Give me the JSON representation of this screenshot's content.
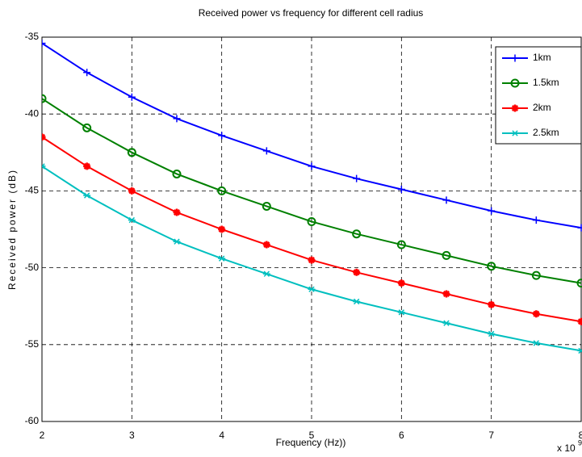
{
  "chart_data": {
    "type": "line",
    "title": "Received power vs frequency for different cell radius",
    "x_label": "Frequency (Hz))",
    "y_label": "Received power (dB)",
    "x_multiplier": {
      "base": "x 10",
      "exponent": "9"
    },
    "x": [
      2,
      2.5,
      3,
      3.5,
      4,
      4.5,
      5,
      5.5,
      6,
      6.5,
      7,
      7.5,
      8
    ],
    "series": [
      {
        "name": "1km",
        "color": "#0000ff",
        "marker": "plus",
        "values": [
          -35.4,
          -37.3,
          -38.9,
          -40.3,
          -41.4,
          -42.4,
          -43.4,
          -44.2,
          -44.9,
          -45.6,
          -46.3,
          -46.9,
          -47.4
        ]
      },
      {
        "name": "1.5km",
        "color": "#008000",
        "marker": "circle",
        "values": [
          -39.0,
          -40.9,
          -42.5,
          -43.9,
          -45.0,
          -46.0,
          -47.0,
          -47.8,
          -48.5,
          -49.2,
          -49.9,
          -50.5,
          -51.0
        ]
      },
      {
        "name": "2km",
        "color": "#ff0000",
        "marker": "star",
        "values": [
          -41.5,
          -43.4,
          -45.0,
          -46.4,
          -47.5,
          -48.5,
          -49.5,
          -50.3,
          -51.0,
          -51.7,
          -52.4,
          -53.0,
          -53.5
        ]
      },
      {
        "name": "2.5km",
        "color": "#00bfbf",
        "marker": "asterisk",
        "values": [
          -43.4,
          -45.3,
          -46.9,
          -48.3,
          -49.4,
          -50.4,
          -51.4,
          -52.2,
          -52.9,
          -53.6,
          -54.3,
          -54.9,
          -55.4
        ]
      }
    ],
    "xlim": [
      2,
      8
    ],
    "xticks": [
      2,
      3,
      4,
      5,
      6,
      7,
      8
    ],
    "ylim": [
      -60,
      -35
    ],
    "yticks": [
      -60,
      -55,
      -50,
      -45,
      -40,
      -35
    ],
    "grid": true,
    "legend": "top-right"
  }
}
